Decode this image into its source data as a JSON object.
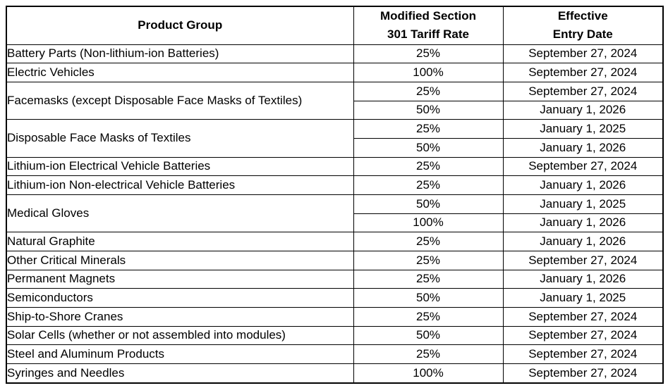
{
  "colors": {
    "border": "#000000",
    "text": "#000000",
    "background": "#ffffff"
  },
  "table": {
    "columns": [
      {
        "line1": "Product Group",
        "line2": ""
      },
      {
        "line1": "Modified Section",
        "line2": "301 Tariff Rate"
      },
      {
        "line1": "Effective",
        "line2": "Entry Date"
      }
    ],
    "groups": [
      {
        "product": "Battery Parts (Non-lithium-ion Batteries)",
        "entries": [
          {
            "rate": "25%",
            "date": "September 27, 2024"
          }
        ]
      },
      {
        "product": "Electric Vehicles",
        "entries": [
          {
            "rate": "100%",
            "date": "September 27, 2024"
          }
        ]
      },
      {
        "product": "Facemasks (except Disposable Face Masks of Textiles)",
        "entries": [
          {
            "rate": "25%",
            "date": "September 27, 2024"
          },
          {
            "rate": "50%",
            "date": "January 1, 2026"
          }
        ]
      },
      {
        "product": "Disposable Face Masks of Textiles",
        "entries": [
          {
            "rate": "25%",
            "date": "January 1, 2025"
          },
          {
            "rate": "50%",
            "date": "January 1, 2026"
          }
        ]
      },
      {
        "product": "Lithium-ion Electrical Vehicle Batteries",
        "entries": [
          {
            "rate": "25%",
            "date": "September 27, 2024"
          }
        ]
      },
      {
        "product": "Lithium-ion Non-electrical Vehicle Batteries",
        "entries": [
          {
            "rate": "25%",
            "date": "January 1, 2026"
          }
        ]
      },
      {
        "product": "Medical Gloves",
        "entries": [
          {
            "rate": "50%",
            "date": "January 1, 2025"
          },
          {
            "rate": "100%",
            "date": "January 1, 2026"
          }
        ]
      },
      {
        "product": "Natural Graphite",
        "entries": [
          {
            "rate": "25%",
            "date": "January 1, 2026"
          }
        ]
      },
      {
        "product": "Other Critical Minerals",
        "entries": [
          {
            "rate": "25%",
            "date": "September 27, 2024"
          }
        ]
      },
      {
        "product": "Permanent Magnets",
        "entries": [
          {
            "rate": "25%",
            "date": "January 1, 2026"
          }
        ]
      },
      {
        "product": "Semiconductors",
        "entries": [
          {
            "rate": "50%",
            "date": "January 1, 2025"
          }
        ]
      },
      {
        "product": "Ship-to-Shore Cranes",
        "entries": [
          {
            "rate": "25%",
            "date": "September 27, 2024"
          }
        ]
      },
      {
        "product": "Solar Cells (whether or not assembled into modules)",
        "entries": [
          {
            "rate": "50%",
            "date": "September 27, 2024"
          }
        ]
      },
      {
        "product": "Steel and Aluminum Products",
        "entries": [
          {
            "rate": "25%",
            "date": "September 27, 2024"
          }
        ]
      },
      {
        "product": "Syringes and Needles",
        "entries": [
          {
            "rate": "100%",
            "date": "September 27, 2024"
          }
        ]
      }
    ]
  }
}
